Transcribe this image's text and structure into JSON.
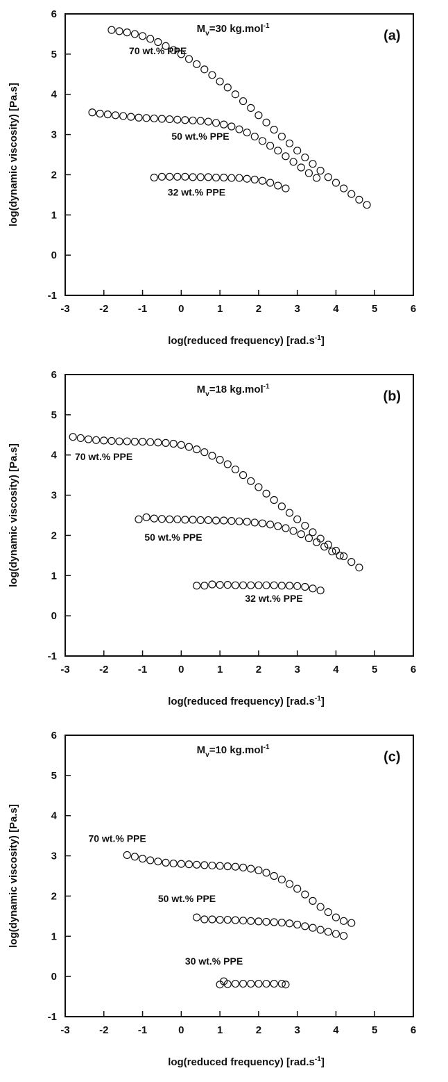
{
  "chart_data": [
    {
      "type": "scatter",
      "panel_tag": "(a)",
      "mw_prefix": "M",
      "mw_sub": "v",
      "mw_main": "=30 kg.mol",
      "mw_sup": "-1",
      "xlabel": "log(reduced frequency) [rad.s",
      "xlabel_sup": "-1",
      "xlabel_end": "]",
      "ylabel": "log(dynamic viscosity) [Pa.s]",
      "xlim": [
        -3,
        6
      ],
      "ylim": [
        -1,
        6
      ],
      "xticks": [
        "-3",
        "-2",
        "-1",
        "0",
        "1",
        "2",
        "3",
        "4",
        "5",
        "6"
      ],
      "yticks": [
        "-1",
        "0",
        "1",
        "2",
        "3",
        "4",
        "5",
        "6"
      ],
      "grid": false,
      "marker": "open-circle",
      "series": [
        {
          "name": "70 wt.% PPE",
          "label_pos": [
            -1.35,
            5.0
          ],
          "points": [
            [
              -1.8,
              5.6
            ],
            [
              -1.6,
              5.57
            ],
            [
              -1.4,
              5.54
            ],
            [
              -1.2,
              5.5
            ],
            [
              -1.0,
              5.45
            ],
            [
              -0.8,
              5.38
            ],
            [
              -0.6,
              5.3
            ],
            [
              -0.4,
              5.2
            ],
            [
              -0.2,
              5.1
            ],
            [
              0.0,
              5.0
            ],
            [
              0.2,
              4.88
            ],
            [
              0.4,
              4.75
            ],
            [
              0.6,
              4.62
            ],
            [
              0.8,
              4.48
            ],
            [
              1.0,
              4.32
            ],
            [
              1.2,
              4.17
            ],
            [
              1.4,
              4.0
            ],
            [
              1.6,
              3.83
            ],
            [
              1.8,
              3.66
            ],
            [
              2.0,
              3.48
            ],
            [
              2.2,
              3.3
            ],
            [
              2.4,
              3.12
            ],
            [
              2.6,
              2.95
            ],
            [
              2.8,
              2.78
            ],
            [
              3.0,
              2.6
            ],
            [
              3.2,
              2.43
            ],
            [
              3.4,
              2.27
            ],
            [
              3.6,
              2.1
            ],
            [
              3.8,
              1.94
            ],
            [
              4.0,
              1.8
            ],
            [
              4.2,
              1.66
            ],
            [
              4.4,
              1.52
            ],
            [
              4.6,
              1.38
            ],
            [
              4.8,
              1.25
            ]
          ]
        },
        {
          "name": "50 wt.% PPE",
          "label_pos": [
            -0.25,
            2.87
          ],
          "points": [
            [
              -2.3,
              3.55
            ],
            [
              -2.1,
              3.52
            ],
            [
              -1.9,
              3.5
            ],
            [
              -1.7,
              3.48
            ],
            [
              -1.5,
              3.46
            ],
            [
              -1.3,
              3.44
            ],
            [
              -1.1,
              3.42
            ],
            [
              -0.9,
              3.41
            ],
            [
              -0.7,
              3.4
            ],
            [
              -0.5,
              3.39
            ],
            [
              -0.3,
              3.38
            ],
            [
              -0.1,
              3.37
            ],
            [
              0.1,
              3.36
            ],
            [
              0.3,
              3.35
            ],
            [
              0.5,
              3.34
            ],
            [
              0.7,
              3.32
            ],
            [
              0.9,
              3.29
            ],
            [
              1.1,
              3.25
            ],
            [
              1.3,
              3.2
            ],
            [
              1.5,
              3.13
            ],
            [
              1.7,
              3.05
            ],
            [
              1.9,
              2.95
            ],
            [
              2.1,
              2.84
            ],
            [
              2.3,
              2.72
            ],
            [
              2.5,
              2.6
            ],
            [
              2.7,
              2.46
            ],
            [
              2.9,
              2.32
            ],
            [
              3.1,
              2.18
            ],
            [
              3.3,
              2.04
            ],
            [
              3.5,
              1.92
            ]
          ]
        },
        {
          "name": "32 wt.% PPE",
          "label_pos": [
            -0.35,
            1.48
          ],
          "points": [
            [
              -0.7,
              1.93
            ],
            [
              -0.5,
              1.95
            ],
            [
              -0.3,
              1.95
            ],
            [
              -0.1,
              1.95
            ],
            [
              0.1,
              1.95
            ],
            [
              0.3,
              1.94
            ],
            [
              0.5,
              1.94
            ],
            [
              0.7,
              1.94
            ],
            [
              0.9,
              1.93
            ],
            [
              1.1,
              1.93
            ],
            [
              1.3,
              1.92
            ],
            [
              1.5,
              1.92
            ],
            [
              1.7,
              1.9
            ],
            [
              1.9,
              1.88
            ],
            [
              2.1,
              1.85
            ],
            [
              2.3,
              1.8
            ],
            [
              2.5,
              1.73
            ],
            [
              2.7,
              1.66
            ]
          ]
        }
      ]
    },
    {
      "type": "scatter",
      "panel_tag": "(b)",
      "mw_prefix": "M",
      "mw_sub": "v",
      "mw_main": "=18 kg.mol",
      "mw_sup": "-1",
      "xlabel": "log(reduced frequency) [rad.s",
      "xlabel_sup": "-1",
      "xlabel_end": "]",
      "ylabel": "log(dynamic viscosity) [Pa.s]",
      "xlim": [
        -3,
        6
      ],
      "ylim": [
        -1,
        6
      ],
      "xticks": [
        "-3",
        "-2",
        "-1",
        "0",
        "1",
        "2",
        "3",
        "4",
        "5",
        "6"
      ],
      "yticks": [
        "-1",
        "0",
        "1",
        "2",
        "3",
        "4",
        "5",
        "6"
      ],
      "grid": false,
      "marker": "open-circle",
      "series": [
        {
          "name": "70 wt.% PPE",
          "label_pos": [
            -2.75,
            3.87
          ],
          "points": [
            [
              -2.8,
              4.45
            ],
            [
              -2.6,
              4.42
            ],
            [
              -2.4,
              4.39
            ],
            [
              -2.2,
              4.37
            ],
            [
              -2.0,
              4.36
            ],
            [
              -1.8,
              4.35
            ],
            [
              -1.6,
              4.34
            ],
            [
              -1.4,
              4.34
            ],
            [
              -1.2,
              4.33
            ],
            [
              -1.0,
              4.33
            ],
            [
              -0.8,
              4.32
            ],
            [
              -0.6,
              4.31
            ],
            [
              -0.4,
              4.3
            ],
            [
              -0.2,
              4.28
            ],
            [
              0.0,
              4.25
            ],
            [
              0.2,
              4.2
            ],
            [
              0.4,
              4.14
            ],
            [
              0.6,
              4.07
            ],
            [
              0.8,
              3.98
            ],
            [
              1.0,
              3.88
            ],
            [
              1.2,
              3.77
            ],
            [
              1.4,
              3.64
            ],
            [
              1.6,
              3.5
            ],
            [
              1.8,
              3.35
            ],
            [
              2.0,
              3.2
            ],
            [
              2.2,
              3.04
            ],
            [
              2.4,
              2.88
            ],
            [
              2.6,
              2.72
            ],
            [
              2.8,
              2.56
            ],
            [
              3.0,
              2.4
            ],
            [
              3.2,
              2.24
            ],
            [
              3.4,
              2.08
            ],
            [
              3.6,
              1.92
            ],
            [
              3.8,
              1.77
            ],
            [
              4.0,
              1.62
            ],
            [
              4.2,
              1.48
            ],
            [
              4.4,
              1.34
            ],
            [
              4.6,
              1.2
            ]
          ]
        },
        {
          "name": "50 wt.% PPE",
          "label_pos": [
            -0.95,
            1.87
          ],
          "points": [
            [
              -1.1,
              2.4
            ],
            [
              -0.9,
              2.45
            ],
            [
              -0.7,
              2.42
            ],
            [
              -0.5,
              2.41
            ],
            [
              -0.3,
              2.4
            ],
            [
              -0.1,
              2.4
            ],
            [
              0.1,
              2.39
            ],
            [
              0.3,
              2.39
            ],
            [
              0.5,
              2.38
            ],
            [
              0.7,
              2.38
            ],
            [
              0.9,
              2.37
            ],
            [
              1.1,
              2.37
            ],
            [
              1.3,
              2.36
            ],
            [
              1.5,
              2.35
            ],
            [
              1.7,
              2.34
            ],
            [
              1.9,
              2.32
            ],
            [
              2.1,
              2.3
            ],
            [
              2.3,
              2.27
            ],
            [
              2.5,
              2.23
            ],
            [
              2.7,
              2.18
            ],
            [
              2.9,
              2.11
            ],
            [
              3.1,
              2.03
            ],
            [
              3.3,
              1.93
            ],
            [
              3.5,
              1.83
            ],
            [
              3.7,
              1.72
            ],
            [
              3.9,
              1.6
            ],
            [
              4.1,
              1.5
            ]
          ]
        },
        {
          "name": "32 wt.% PPE",
          "label_pos": [
            1.65,
            0.35
          ],
          "points": [
            [
              0.4,
              0.75
            ],
            [
              0.6,
              0.75
            ],
            [
              0.8,
              0.78
            ],
            [
              1.0,
              0.77
            ],
            [
              1.2,
              0.77
            ],
            [
              1.4,
              0.76
            ],
            [
              1.6,
              0.76
            ],
            [
              1.8,
              0.76
            ],
            [
              2.0,
              0.76
            ],
            [
              2.2,
              0.76
            ],
            [
              2.4,
              0.76
            ],
            [
              2.6,
              0.75
            ],
            [
              2.8,
              0.75
            ],
            [
              3.0,
              0.74
            ],
            [
              3.2,
              0.72
            ],
            [
              3.4,
              0.68
            ],
            [
              3.6,
              0.63
            ]
          ]
        }
      ]
    },
    {
      "type": "scatter",
      "panel_tag": "(c)",
      "mw_prefix": "M",
      "mw_sub": "v",
      "mw_main": "=10 kg.mol",
      "mw_sup": "-1",
      "xlabel": "log(reduced frequency) [rad.s",
      "xlabel_sup": "-1",
      "xlabel_end": "]",
      "ylabel": "log(dynamic viscosity) [Pa.s]",
      "xlim": [
        -3,
        6
      ],
      "ylim": [
        -1,
        6
      ],
      "xticks": [
        "-3",
        "-2",
        "-1",
        "0",
        "1",
        "2",
        "3",
        "4",
        "5",
        "6"
      ],
      "yticks": [
        "-1",
        "0",
        "1",
        "2",
        "3",
        "4",
        "5",
        "6"
      ],
      "grid": false,
      "marker": "open-circle",
      "series": [
        {
          "name": "70 wt.% PPE",
          "label_pos": [
            -2.4,
            3.35
          ],
          "points": [
            [
              -1.4,
              3.02
            ],
            [
              -1.2,
              2.98
            ],
            [
              -1.0,
              2.93
            ],
            [
              -0.8,
              2.89
            ],
            [
              -0.6,
              2.86
            ],
            [
              -0.4,
              2.83
            ],
            [
              -0.2,
              2.81
            ],
            [
              0.0,
              2.8
            ],
            [
              0.2,
              2.79
            ],
            [
              0.4,
              2.78
            ],
            [
              0.6,
              2.77
            ],
            [
              0.8,
              2.76
            ],
            [
              1.0,
              2.75
            ],
            [
              1.2,
              2.74
            ],
            [
              1.4,
              2.73
            ],
            [
              1.6,
              2.71
            ],
            [
              1.8,
              2.68
            ],
            [
              2.0,
              2.64
            ],
            [
              2.2,
              2.58
            ],
            [
              2.4,
              2.5
            ],
            [
              2.6,
              2.41
            ],
            [
              2.8,
              2.3
            ],
            [
              3.0,
              2.18
            ],
            [
              3.2,
              2.04
            ],
            [
              3.4,
              1.88
            ],
            [
              3.6,
              1.73
            ],
            [
              3.8,
              1.6
            ],
            [
              4.0,
              1.47
            ],
            [
              4.2,
              1.38
            ],
            [
              4.4,
              1.33
            ]
          ]
        },
        {
          "name": "50 wt.% PPE",
          "label_pos": [
            -0.6,
            1.85
          ],
          "points": [
            [
              0.4,
              1.47
            ],
            [
              0.6,
              1.42
            ],
            [
              0.8,
              1.42
            ],
            [
              1.0,
              1.41
            ],
            [
              1.2,
              1.41
            ],
            [
              1.4,
              1.4
            ],
            [
              1.6,
              1.39
            ],
            [
              1.8,
              1.38
            ],
            [
              2.0,
              1.37
            ],
            [
              2.2,
              1.36
            ],
            [
              2.4,
              1.35
            ],
            [
              2.6,
              1.34
            ],
            [
              2.8,
              1.32
            ],
            [
              3.0,
              1.29
            ],
            [
              3.2,
              1.25
            ],
            [
              3.4,
              1.21
            ],
            [
              3.6,
              1.16
            ],
            [
              3.8,
              1.11
            ],
            [
              4.0,
              1.06
            ],
            [
              4.2,
              1.01
            ]
          ]
        },
        {
          "name": "30 wt.% PPE",
          "label_pos": [
            0.1,
            0.3
          ],
          "points": [
            [
              1.0,
              -0.2
            ],
            [
              1.1,
              -0.12
            ],
            [
              1.2,
              -0.19
            ],
            [
              1.4,
              -0.18
            ],
            [
              1.6,
              -0.18
            ],
            [
              1.8,
              -0.18
            ],
            [
              2.0,
              -0.18
            ],
            [
              2.2,
              -0.18
            ],
            [
              2.4,
              -0.18
            ],
            [
              2.6,
              -0.18
            ],
            [
              2.7,
              -0.2
            ]
          ]
        }
      ]
    }
  ]
}
